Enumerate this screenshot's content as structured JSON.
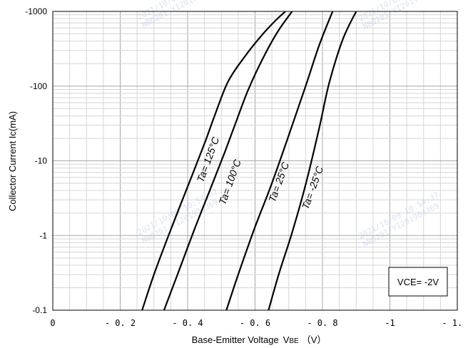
{
  "chart_data": {
    "type": "line",
    "title": "",
    "xlabel": "Base-Emitter Voltage",
    "xlabel_symbol_main": "V",
    "xlabel_symbol_sub": "BE",
    "xlabel_unit": "（V）",
    "ylabel": "Collector Current  Ic(mA)",
    "xlim": [
      0,
      -1.2
    ],
    "ylim": [
      -0.1,
      -1000
    ],
    "y_scale": "log",
    "grid": true,
    "x_ticks": [
      0,
      -0.2,
      -0.4,
      -0.6,
      -0.8,
      -1,
      -1.2
    ],
    "x_tick_labels": [
      "0",
      "- 0. 2",
      "- 0. 4",
      "- 0. 6",
      "- 0. 8",
      "-1",
      "- 1. 2"
    ],
    "y_ticks": [
      -0.1,
      -1,
      -10,
      -100,
      -1000
    ],
    "y_tick_labels": [
      "-0.1",
      "-1",
      "-10",
      "-100",
      "-1000"
    ],
    "annotation": "VCE= -2V",
    "series": [
      {
        "name": "Ta= 125°C",
        "x": [
          -0.265,
          -0.3,
          -0.35,
          -0.4,
          -0.45,
          -0.48,
          -0.52,
          -0.57,
          -0.62,
          -0.66,
          -0.69
        ],
        "y": [
          -0.1,
          -0.3,
          -1.2,
          -4.5,
          -17,
          -40,
          -115,
          -250,
          -480,
          -750,
          -1000
        ]
      },
      {
        "name": "Ta= 100°C",
        "x": [
          -0.33,
          -0.37,
          -0.42,
          -0.47,
          -0.51,
          -0.54,
          -0.58,
          -0.63,
          -0.67,
          -0.71
        ],
        "y": [
          -0.1,
          -0.3,
          -1.2,
          -4.5,
          -13,
          -30,
          -90,
          -270,
          -560,
          -1000
        ]
      },
      {
        "name": "Ta= 25°C",
        "x": [
          -0.515,
          -0.55,
          -0.6,
          -0.65,
          -0.7,
          -0.75,
          -0.79,
          -0.83
        ],
        "y": [
          -0.1,
          -0.3,
          -1.3,
          -5,
          -22,
          -100,
          -350,
          -1000
        ]
      },
      {
        "name": "Ta= -25°C",
        "x": [
          -0.64,
          -0.67,
          -0.71,
          -0.75,
          -0.79,
          -0.82,
          -0.86,
          -0.9
        ],
        "y": [
          -0.1,
          -0.3,
          -1.1,
          -4.8,
          -27,
          -110,
          -420,
          -1000
        ]
      }
    ],
    "series_label_angle_deg": -70,
    "series_label_anchor_x": [
      -0.47,
      -0.535,
      -0.68,
      -0.78
    ],
    "series_label_anchor_y": [
      -10,
      -5,
      -5,
      -4.2
    ]
  },
  "watermark": {
    "line1": "2021/10/09 10:54:37",
    "line2": "NBO201 YI201903369"
  },
  "colors": {
    "line": "#000000",
    "grid": "#d6d6d6",
    "frame": "#000000",
    "watermark": "#b9cce6"
  }
}
